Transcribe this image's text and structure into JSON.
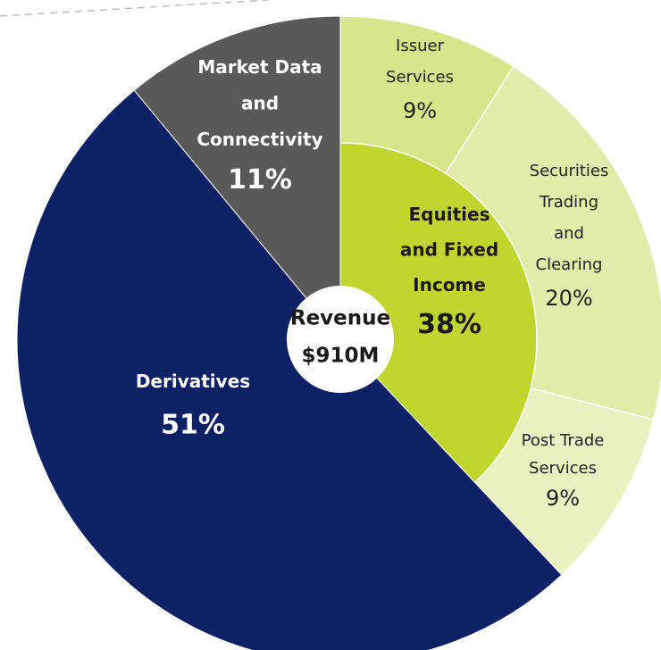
{
  "chart_data": {
    "type": "sunburst",
    "center": {
      "label": "Revenue",
      "total": 910,
      "total_label": "$910M"
    },
    "segments": [
      {
        "name": "Equities and Fixed Income",
        "value": 38,
        "value_label": "38%",
        "color": "#bed630",
        "children": [
          {
            "name": "Issuer Services",
            "value": 9,
            "value_label": "9%",
            "color": "#d7e68a"
          },
          {
            "name": "Securities Trading and Clearing",
            "value": 20,
            "value_label": "20%",
            "color": "#e2ecaa"
          },
          {
            "name": "Post Trade Services",
            "value": 9,
            "value_label": "9%",
            "color": "#e9f1c1"
          }
        ]
      },
      {
        "name": "Derivatives",
        "value": 51,
        "value_label": "51%",
        "color": "#0d2266"
      },
      {
        "name": "Market Data and Connectivity",
        "value": 11,
        "value_label": "11%",
        "color": "#595959"
      }
    ]
  }
}
